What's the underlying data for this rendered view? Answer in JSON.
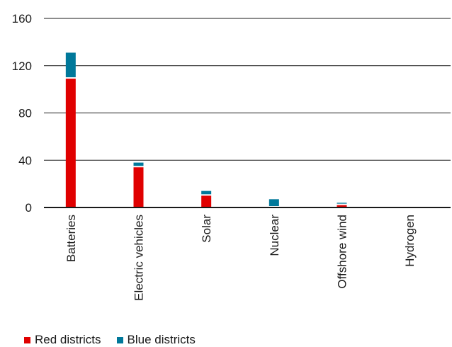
{
  "chart_data": {
    "type": "bar",
    "stacked": true,
    "categories": [
      "Batteries",
      "Electric vehicles",
      "Solar",
      "Nuclear",
      "Offshore wind",
      "Hydrogen"
    ],
    "series": [
      {
        "name": "Red districts",
        "color": "#e00000",
        "values": [
          109,
          34,
          10,
          0,
          2,
          0
        ]
      },
      {
        "name": "Blue districts",
        "color": "#00789a",
        "values": [
          22,
          4,
          4,
          7,
          2,
          1
        ]
      }
    ],
    "ylim": [
      0,
      160
    ],
    "yticks": [
      "0",
      "40",
      "80",
      "120",
      "160"
    ],
    "grid": true,
    "legend_position": "bottom-left"
  }
}
